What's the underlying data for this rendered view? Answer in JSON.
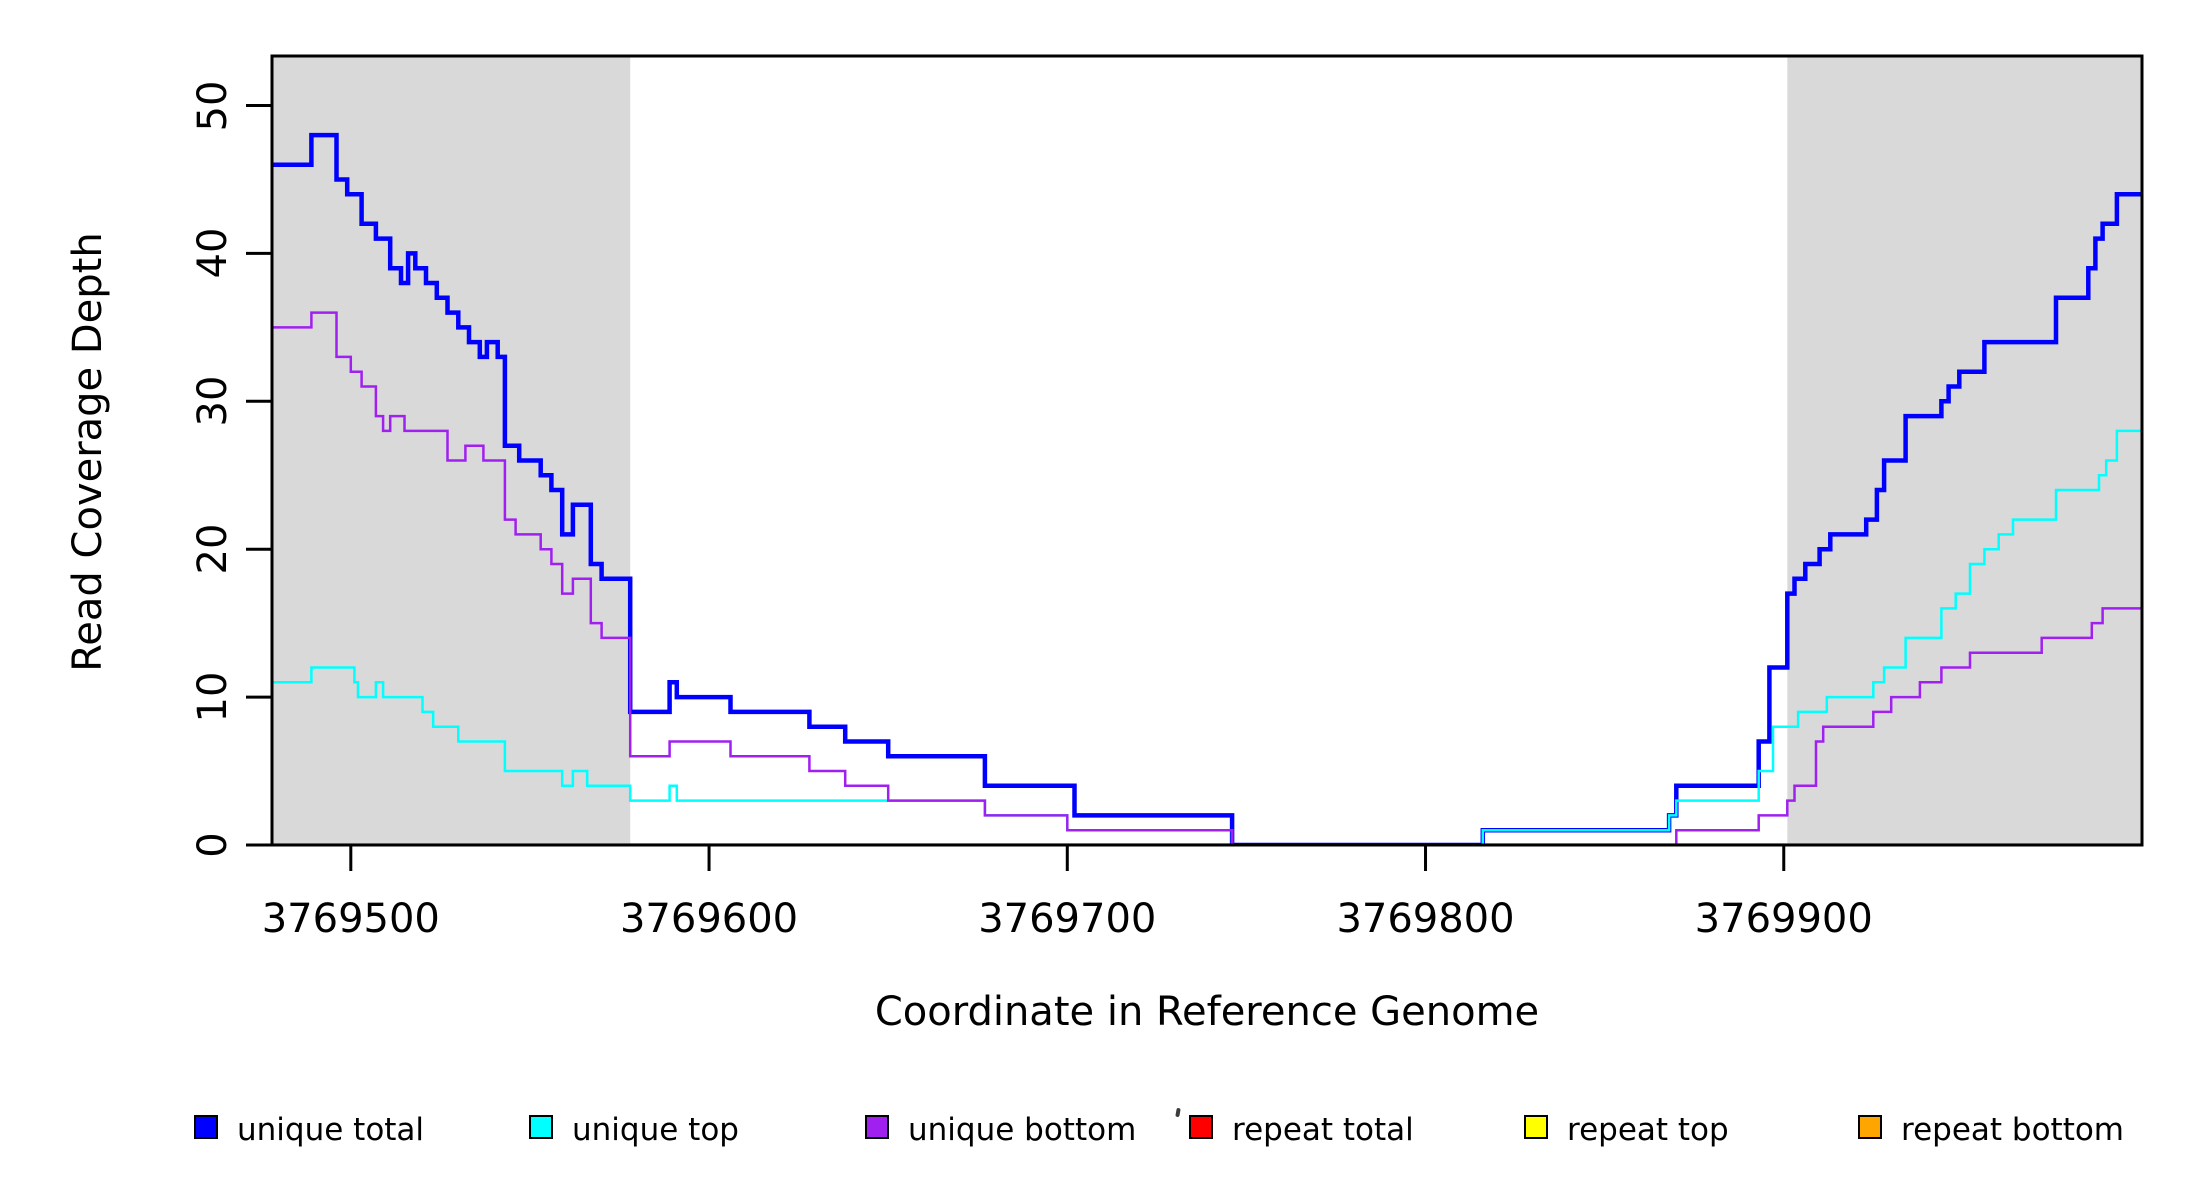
{
  "chart_data": {
    "type": "line",
    "subtype": "step-after",
    "title": "",
    "xlabel": "Coordinate in Reference Genome",
    "ylabel": "Read Coverage Depth",
    "xlim": [
      3769478,
      3770000
    ],
    "ylim": [
      0,
      53
    ],
    "x_ticks": [
      3769500,
      3769600,
      3769700,
      3769800,
      3769900
    ],
    "y_ticks": [
      0,
      10,
      20,
      30,
      40,
      50
    ],
    "grid": false,
    "background_color": "#ffffff",
    "box_color": "#000000",
    "shade_color": "#d9d9d9",
    "shaded_regions": [
      {
        "x0": 3769478,
        "x1": 3769578
      },
      {
        "x0": 3769901,
        "x1": 3770000
      }
    ],
    "legend_position": "bottom",
    "series": [
      {
        "name": "unique total",
        "color": "#0000ff",
        "line_width": 4.5,
        "points": [
          [
            3769478,
            46
          ],
          [
            3769489,
            48
          ],
          [
            3769496,
            45
          ],
          [
            3769499,
            44
          ],
          [
            3769503,
            42
          ],
          [
            3769507,
            41
          ],
          [
            3769511,
            39
          ],
          [
            3769514,
            38
          ],
          [
            3769516,
            40
          ],
          [
            3769518,
            39
          ],
          [
            3769521,
            38
          ],
          [
            3769524,
            37
          ],
          [
            3769527,
            36
          ],
          [
            3769530,
            35
          ],
          [
            3769533,
            34
          ],
          [
            3769536,
            33
          ],
          [
            3769538,
            34
          ],
          [
            3769541,
            33
          ],
          [
            3769543,
            27
          ],
          [
            3769547,
            26
          ],
          [
            3769553,
            25
          ],
          [
            3769556,
            24
          ],
          [
            3769559,
            21
          ],
          [
            3769562,
            23
          ],
          [
            3769567,
            19
          ],
          [
            3769570,
            18
          ],
          [
            3769578,
            9
          ],
          [
            3769589,
            11
          ],
          [
            3769591,
            10
          ],
          [
            3769606,
            9
          ],
          [
            3769628,
            8
          ],
          [
            3769638,
            7
          ],
          [
            3769650,
            6
          ],
          [
            3769677,
            4
          ],
          [
            3769702,
            2
          ],
          [
            3769746,
            0
          ],
          [
            3769816,
            1
          ],
          [
            3769868,
            2
          ],
          [
            3769870,
            4
          ],
          [
            3769893,
            7
          ],
          [
            3769896,
            12
          ],
          [
            3769901,
            17
          ],
          [
            3769903,
            18
          ],
          [
            3769906,
            19
          ],
          [
            3769910,
            20
          ],
          [
            3769913,
            21
          ],
          [
            3769923,
            22
          ],
          [
            3769926,
            24
          ],
          [
            3769928,
            26
          ],
          [
            3769934,
            29
          ],
          [
            3769944,
            30
          ],
          [
            3769946,
            31
          ],
          [
            3769949,
            32
          ],
          [
            3769956,
            34
          ],
          [
            3769976,
            37
          ],
          [
            3769985,
            39
          ],
          [
            3769987,
            41
          ],
          [
            3769989,
            42
          ],
          [
            3769993,
            44
          ]
        ]
      },
      {
        "name": "unique top",
        "color": "#00ffff",
        "line_width": 2.5,
        "points": [
          [
            3769478,
            11
          ],
          [
            3769489,
            12
          ],
          [
            3769501,
            11
          ],
          [
            3769502,
            10
          ],
          [
            3769507,
            11
          ],
          [
            3769509,
            10
          ],
          [
            3769520,
            9
          ],
          [
            3769523,
            8
          ],
          [
            3769530,
            7
          ],
          [
            3769543,
            5
          ],
          [
            3769559,
            4
          ],
          [
            3769562,
            5
          ],
          [
            3769566,
            4
          ],
          [
            3769578,
            3
          ],
          [
            3769589,
            4
          ],
          [
            3769591,
            3
          ],
          [
            3769677,
            2
          ],
          [
            3769700,
            1
          ],
          [
            3769746,
            0
          ],
          [
            3769816,
            1
          ],
          [
            3769868,
            2
          ],
          [
            3769870,
            3
          ],
          [
            3769893,
            5
          ],
          [
            3769897,
            8
          ],
          [
            3769904,
            9
          ],
          [
            3769912,
            10
          ],
          [
            3769925,
            11
          ],
          [
            3769928,
            12
          ],
          [
            3769934,
            14
          ],
          [
            3769944,
            16
          ],
          [
            3769948,
            17
          ],
          [
            3769952,
            19
          ],
          [
            3769956,
            20
          ],
          [
            3769960,
            21
          ],
          [
            3769964,
            22
          ],
          [
            3769976,
            24
          ],
          [
            3769988,
            25
          ],
          [
            3769990,
            26
          ],
          [
            3769993,
            28
          ]
        ]
      },
      {
        "name": "unique bottom",
        "color": "#a020f0",
        "line_width": 2.5,
        "points": [
          [
            3769478,
            35
          ],
          [
            3769489,
            36
          ],
          [
            3769496,
            33
          ],
          [
            3769500,
            32
          ],
          [
            3769503,
            31
          ],
          [
            3769507,
            29
          ],
          [
            3769509,
            28
          ],
          [
            3769511,
            29
          ],
          [
            3769515,
            28
          ],
          [
            3769527,
            26
          ],
          [
            3769532,
            27
          ],
          [
            3769537,
            26
          ],
          [
            3769543,
            22
          ],
          [
            3769546,
            21
          ],
          [
            3769553,
            20
          ],
          [
            3769556,
            19
          ],
          [
            3769559,
            17
          ],
          [
            3769562,
            18
          ],
          [
            3769567,
            15
          ],
          [
            3769570,
            14
          ],
          [
            3769578,
            6
          ],
          [
            3769589,
            7
          ],
          [
            3769606,
            6
          ],
          [
            3769628,
            5
          ],
          [
            3769638,
            4
          ],
          [
            3769650,
            3
          ],
          [
            3769677,
            2
          ],
          [
            3769700,
            1
          ],
          [
            3769746,
            0
          ],
          [
            3769870,
            1
          ],
          [
            3769893,
            2
          ],
          [
            3769901,
            3
          ],
          [
            3769903,
            4
          ],
          [
            3769909,
            7
          ],
          [
            3769911,
            8
          ],
          [
            3769925,
            9
          ],
          [
            3769930,
            10
          ],
          [
            3769938,
            11
          ],
          [
            3769944,
            12
          ],
          [
            3769952,
            13
          ],
          [
            3769972,
            14
          ],
          [
            3769986,
            15
          ],
          [
            3769989,
            16
          ]
        ]
      },
      {
        "name": "repeat total",
        "color": "#ff0000",
        "line_width": 2.5,
        "points": [
          [
            3769478,
            0
          ],
          [
            3770000,
            0
          ]
        ]
      },
      {
        "name": "repeat top",
        "color": "#ffff00",
        "line_width": 2.5,
        "points": [
          [
            3769478,
            0
          ],
          [
            3770000,
            0
          ]
        ]
      },
      {
        "name": "repeat bottom",
        "color": "#ffa500",
        "line_width": 3.5,
        "points": [
          [
            3769478,
            0
          ],
          [
            3770000,
            0
          ]
        ]
      }
    ],
    "draw_order": [
      3,
      4,
      5,
      0,
      1,
      2
    ],
    "legend": [
      {
        "label": "unique total",
        "color": "#0000ff"
      },
      {
        "label": "unique top",
        "color": "#00ffff"
      },
      {
        "label": "unique bottom",
        "color": "#a020f0"
      },
      {
        "label": "repeat total",
        "color": "#ff0000"
      },
      {
        "label": "repeat top",
        "color": "#ffff00"
      },
      {
        "label": "repeat bottom",
        "color": "#ffa500"
      }
    ]
  }
}
